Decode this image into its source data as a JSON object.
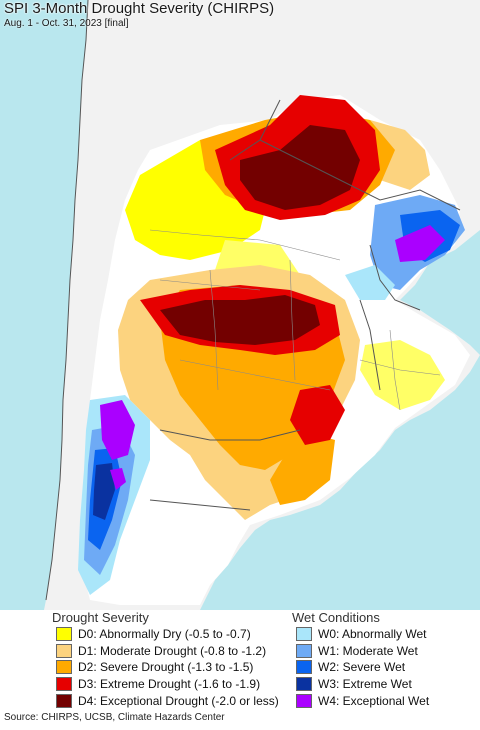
{
  "title": "SPI 3-Month Drought Severity (CHIRPS)",
  "subtitle": "Aug. 1 - Oct. 31, 2023 [final]",
  "colors": {
    "ocean": "#b9e7ee",
    "land_neutral": "#ffffff",
    "border": "#555555"
  },
  "legend": {
    "drought": {
      "heading": "Drought Severity",
      "items": [
        {
          "label": "D0: Abnormally Dry (-0.5 to -0.7)",
          "color": "#ffff00"
        },
        {
          "label": "D1: Moderate Drought (-0.8 to -1.2)",
          "color": "#fcd37f"
        },
        {
          "label": "D2: Severe Drought (-1.3 to -1.5)",
          "color": "#ffaa00"
        },
        {
          "label": "D3: Extreme Drought (-1.6 to -1.9)",
          "color": "#e60000"
        },
        {
          "label": "D4: Exceptional Drought (-2.0 or less)",
          "color": "#730000"
        }
      ]
    },
    "wet": {
      "heading": "Wet Conditions",
      "items": [
        {
          "label": "W0: Abnormally Wet",
          "color": "#aae6fa"
        },
        {
          "label": "W1: Moderate Wet",
          "color": "#6eaaf5"
        },
        {
          "label": "W2: Severe Wet",
          "color": "#0a64f0"
        },
        {
          "label": "W3: Extreme Wet",
          "color": "#0a32a0"
        },
        {
          "label": "W4: Exceptional Wet",
          "color": "#aa00ff"
        }
      ]
    }
  },
  "source": "Source: CHIRPS, UCSB, Climate Hazards Center"
}
